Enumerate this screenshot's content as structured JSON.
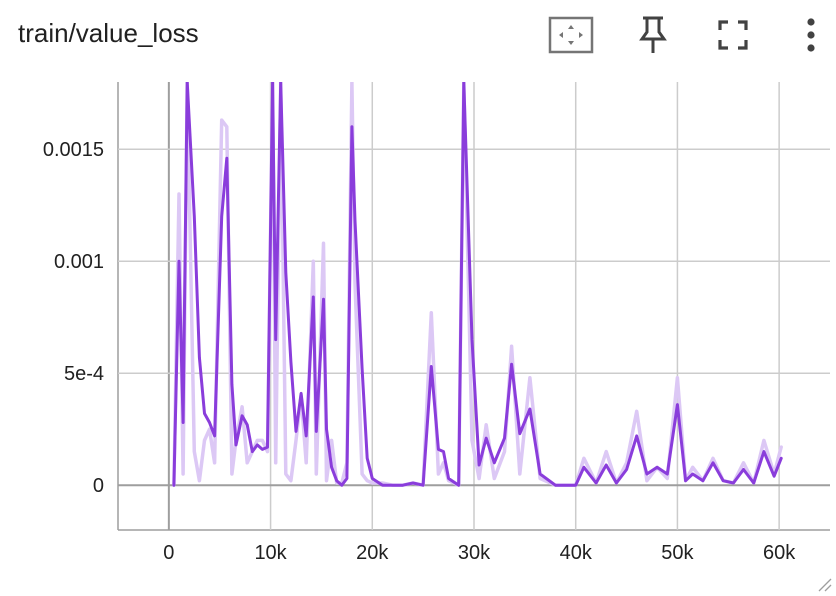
{
  "header": {
    "title": "train/value_loss",
    "buttons": [
      {
        "name": "fit-domain-button",
        "icon": "fit-to-domain-icon"
      },
      {
        "name": "pin-button",
        "icon": "pin-icon"
      },
      {
        "name": "fullscreen-button",
        "icon": "fullscreen-icon"
      },
      {
        "name": "more-button",
        "icon": "more-vert-icon"
      }
    ]
  },
  "colors": {
    "smoothed": "#8a3ddb",
    "raw": "#dcc8f5",
    "grid": "#cccccc",
    "axis": "#9e9e9e",
    "zero_line": "#9e9e9e"
  },
  "chart_data": {
    "type": "line",
    "title": "train/value_loss",
    "xlim": [
      -5000,
      65000
    ],
    "ylim": [
      -0.0002,
      0.0018
    ],
    "x_ticks": [
      0,
      10000,
      20000,
      30000,
      40000,
      50000,
      60000
    ],
    "x_tick_labels": [
      "0",
      "10k",
      "20k",
      "30k",
      "40k",
      "50k",
      "60k"
    ],
    "y_ticks": [
      0,
      0.0005,
      0.001,
      0.0015
    ],
    "y_tick_labels": [
      "0",
      "5e-4",
      "0.001",
      "0.0015"
    ],
    "grid": true,
    "series": [
      {
        "role": "raw",
        "x": [
          500,
          1000,
          1400,
          1800,
          2500,
          3000,
          3500,
          4000,
          4500,
          5200,
          5700,
          6200,
          6600,
          7200,
          7700,
          8200,
          8700,
          9200,
          9700,
          10200,
          10500,
          11000,
          11500,
          12000,
          12500,
          13000,
          13500,
          14200,
          14500,
          15200,
          15500,
          16000,
          16500,
          17000,
          17500,
          18000,
          18300,
          19000,
          19500,
          20000,
          21000,
          22000,
          23000,
          24000,
          25000,
          25800,
          26500,
          27000,
          27500,
          28500,
          29000,
          29800,
          30500,
          31200,
          32000,
          33000,
          33700,
          34500,
          35500,
          36500,
          38000,
          40000,
          40800,
          42000,
          43000,
          44000,
          45000,
          46000,
          47000,
          48000,
          49000,
          50000,
          50800,
          51500,
          52500,
          53500,
          54500,
          55500,
          56500,
          57500,
          58500,
          59500,
          60200
        ],
        "values": [
          0,
          0.0013,
          5e-05,
          0.0018,
          0.00015,
          2e-05,
          0.0002,
          0.00025,
          0.0001,
          0.00163,
          0.0016,
          5e-05,
          0.0002,
          0.00035,
          0.0001,
          0.00015,
          0.0002,
          0.0002,
          0.00015,
          0.0018,
          0.0001,
          0.0018,
          5e-05,
          2e-05,
          0.0002,
          0.0004,
          0.0001,
          0.001,
          5e-05,
          0.00108,
          2e-05,
          0.0002,
          1e-05,
          1e-05,
          0.0001,
          0.0018,
          0.0009,
          5e-05,
          2e-05,
          1e-05,
          1e-05,
          0,
          0,
          1e-05,
          0,
          0.00077,
          5e-05,
          0.0001,
          2e-05,
          0,
          0.0018,
          0.0002,
          3e-05,
          0.00027,
          3e-05,
          0.00015,
          0.00062,
          5e-05,
          0.00048,
          3e-05,
          0,
          0,
          0.00012,
          1e-05,
          0.00015,
          1e-05,
          0.0001,
          0.00033,
          2e-05,
          8e-05,
          3e-05,
          0.00048,
          2e-05,
          8e-05,
          2e-05,
          0.00012,
          2e-05,
          1e-05,
          0.0001,
          1e-05,
          0.0002,
          5e-05,
          0.00017
        ]
      },
      {
        "role": "smoothed",
        "x": [
          500,
          1000,
          1400,
          1800,
          2500,
          3000,
          3500,
          4000,
          4500,
          5200,
          5700,
          6200,
          6600,
          7200,
          7700,
          8200,
          8700,
          9200,
          9700,
          10200,
          10500,
          11000,
          11500,
          12000,
          12500,
          13000,
          13500,
          14200,
          14500,
          15200,
          15500,
          16000,
          16500,
          17000,
          17500,
          18000,
          18300,
          19000,
          19500,
          20000,
          21000,
          22000,
          23000,
          24000,
          25000,
          25800,
          26500,
          27000,
          27500,
          28500,
          29000,
          29800,
          30500,
          31200,
          32000,
          33000,
          33700,
          34500,
          35500,
          36500,
          38000,
          40000,
          40800,
          42000,
          43000,
          44000,
          45000,
          46000,
          47000,
          48000,
          49000,
          50000,
          50800,
          51500,
          52500,
          53500,
          54500,
          55500,
          56500,
          57500,
          58500,
          59500,
          60200
        ],
        "values": [
          0,
          0.001,
          0.00028,
          0.0018,
          0.0012,
          0.00057,
          0.00032,
          0.00028,
          0.00022,
          0.0012,
          0.00146,
          0.00045,
          0.00018,
          0.00031,
          0.00027,
          0.00015,
          0.00018,
          0.00016,
          0.00017,
          0.0018,
          0.00065,
          0.0018,
          0.00095,
          0.00055,
          0.00024,
          0.00041,
          0.00022,
          0.00084,
          0.00024,
          0.00083,
          0.00025,
          8e-05,
          2e-05,
          0,
          3e-05,
          0.0016,
          0.00118,
          0.00052,
          0.00012,
          3e-05,
          0,
          0,
          0,
          1e-05,
          0,
          0.00053,
          0.00016,
          0.00015,
          3e-05,
          0,
          0.0018,
          0.00065,
          9e-05,
          0.00021,
          0.0001,
          0.00021,
          0.00054,
          0.00023,
          0.00034,
          5e-05,
          0,
          0,
          8e-05,
          1e-05,
          9e-05,
          1e-05,
          7e-05,
          0.00022,
          5e-05,
          8e-05,
          5e-05,
          0.00036,
          2e-05,
          5e-05,
          2e-05,
          0.0001,
          2e-05,
          1e-05,
          7e-05,
          1e-05,
          0.00015,
          4e-05,
          0.00012
        ]
      }
    ]
  }
}
